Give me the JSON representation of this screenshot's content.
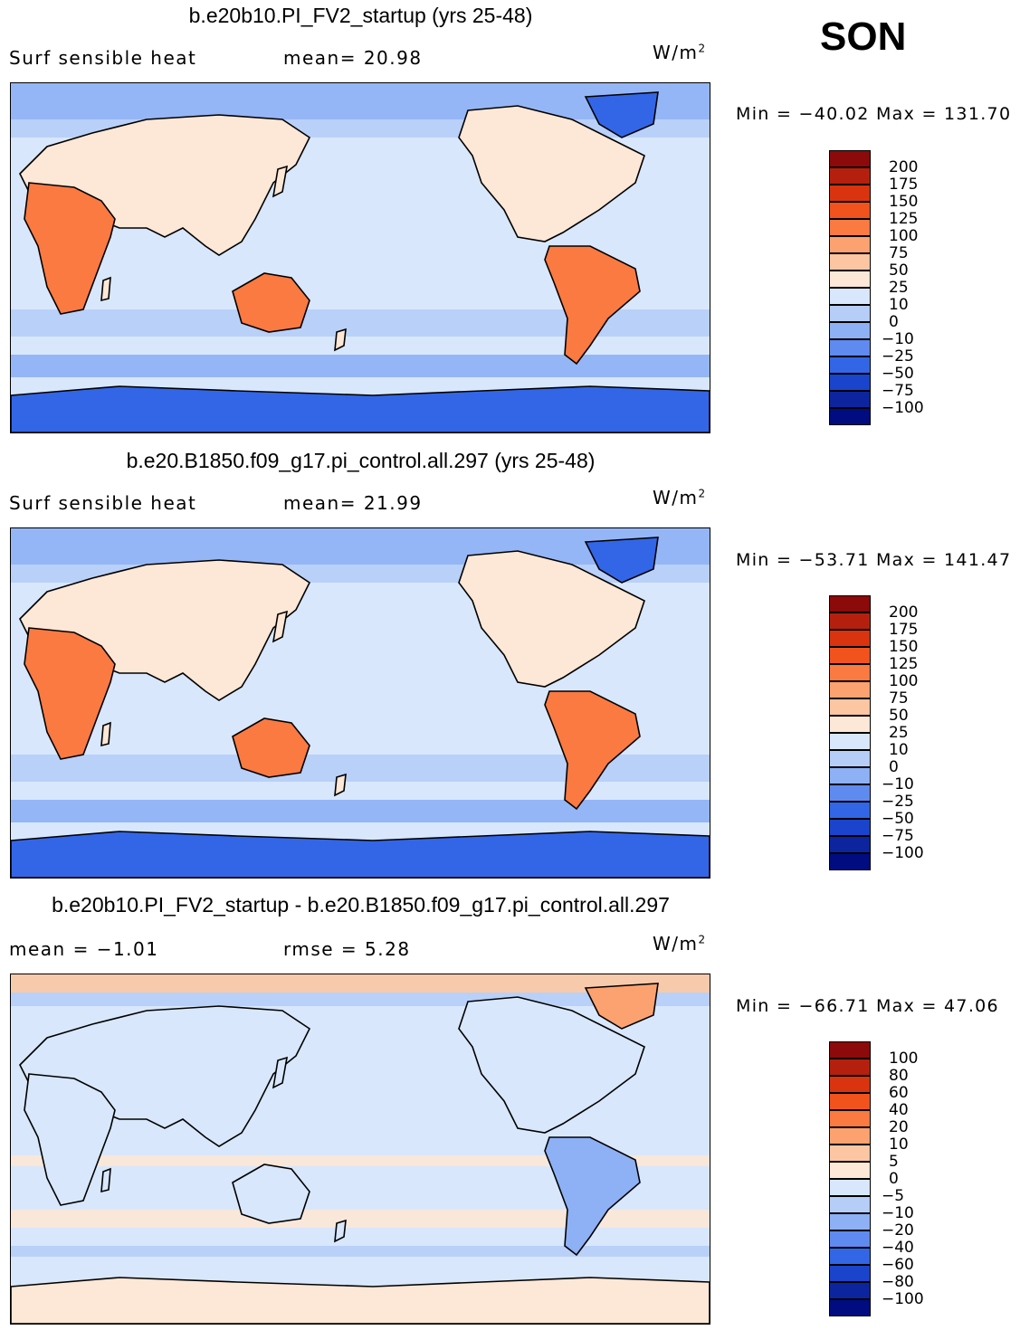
{
  "season": "SON",
  "panels": [
    {
      "title": "b.e20b10.PI_FV2_startup (yrs 25-48)",
      "left_label": "Surf  sensible  heat",
      "mid_label": "mean=   20.98",
      "units_base": "W/m",
      "units_sup": "2",
      "minmax": "Min  =  −40.02  Max  =  131.70",
      "colorbar_ticks": [
        "200",
        "175",
        "150",
        "125",
        "100",
        "75",
        "50",
        "25",
        "10",
        "0",
        "−10",
        "−25",
        "−50",
        "−75",
        "−100"
      ],
      "colorbar_colors": [
        "#8c0a0a",
        "#b5200e",
        "#d9340f",
        "#f2521c",
        "#fa7a42",
        "#fca271",
        "#fcc6a3",
        "#fde7d6",
        "#d8e7fb",
        "#b6cdf8",
        "#8eb0f5",
        "#5f8af0",
        "#3366e6",
        "#1a44cc",
        "#0c259f",
        "#000c80"
      ],
      "map_style": "abs"
    },
    {
      "title": "b.e20.B1850.f09_g17.pi_control.all.297 (yrs 25-48)",
      "left_label": "Surf  sensible  heat",
      "mid_label": "mean=   21.99",
      "units_base": "W/m",
      "units_sup": "2",
      "minmax": "Min  =  −53.71  Max  =  141.47",
      "colorbar_ticks": [
        "200",
        "175",
        "150",
        "125",
        "100",
        "75",
        "50",
        "25",
        "10",
        "0",
        "−10",
        "−25",
        "−50",
        "−75",
        "−100"
      ],
      "colorbar_colors": [
        "#8c0a0a",
        "#b5200e",
        "#d9340f",
        "#f2521c",
        "#fa7a42",
        "#fca271",
        "#fcc6a3",
        "#fde7d6",
        "#d8e7fb",
        "#b6cdf8",
        "#8eb0f5",
        "#5f8af0",
        "#3366e6",
        "#1a44cc",
        "#0c259f",
        "#000c80"
      ],
      "map_style": "abs"
    },
    {
      "title": "b.e20b10.PI_FV2_startup - b.e20.B1850.f09_g17.pi_control.all.297",
      "left_label": "mean  =    −1.01",
      "mid_label": "rmse  =     5.28",
      "units_base": "W/m",
      "units_sup": "2",
      "minmax": "Min  =  −66.71  Max  =    47.06",
      "colorbar_ticks": [
        "100",
        "80",
        "60",
        "40",
        "20",
        "10",
        "5",
        "0",
        "−5",
        "−10",
        "−20",
        "−40",
        "−60",
        "−80",
        "−100"
      ],
      "colorbar_colors": [
        "#8c0a0a",
        "#b5200e",
        "#d9340f",
        "#f2521c",
        "#fa7a42",
        "#fca271",
        "#fcc6a3",
        "#fde7d6",
        "#d8e7fb",
        "#b6cdf8",
        "#8eb0f5",
        "#5f8af0",
        "#3366e6",
        "#1a44cc",
        "#0c259f",
        "#000c80"
      ],
      "map_style": "diff"
    }
  ]
}
